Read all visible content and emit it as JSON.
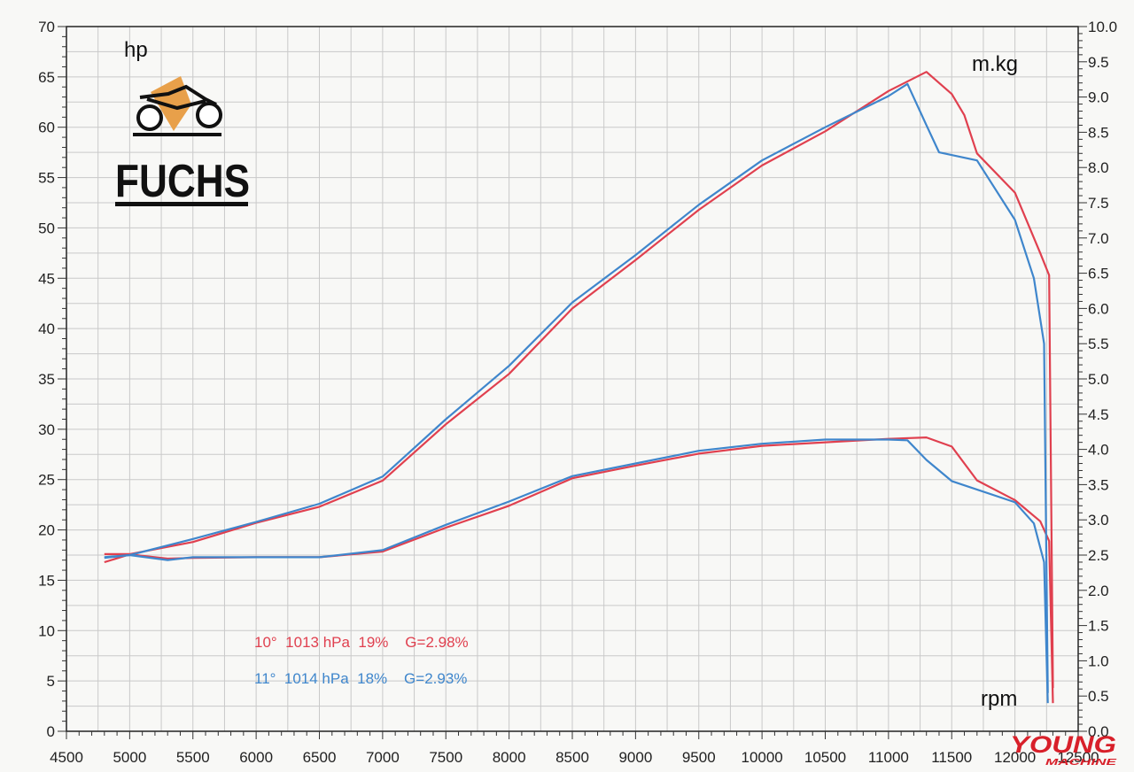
{
  "chart_data": {
    "type": "line",
    "left_axis": {
      "label": "hp",
      "range": [
        0,
        70
      ],
      "ticks": [
        "0",
        "5",
        "10",
        "15",
        "20",
        "25",
        "30",
        "35",
        "40",
        "45",
        "50",
        "55",
        "60",
        "65",
        "70"
      ]
    },
    "right_axis": {
      "label": "m.kg",
      "range": [
        0.0,
        10.0
      ],
      "ticks": [
        "0.0",
        "0.5",
        "1.0",
        "1.5",
        "2.0",
        "2.5",
        "3.0",
        "3.5",
        "4.0",
        "4.5",
        "5.0",
        "5.5",
        "6.0",
        "6.5",
        "7.0",
        "7.5",
        "8.0",
        "8.5",
        "9.0",
        "9.5",
        "10.0"
      ]
    },
    "x_axis": {
      "label": "rpm",
      "range": [
        4500,
        12500
      ],
      "ticks": [
        "4500",
        "5000",
        "5500",
        "6000",
        "6500",
        "7000",
        "7500",
        "8000",
        "8500",
        "9000",
        "9500",
        "10000",
        "10500",
        "11000",
        "11500",
        "12000",
        "12500"
      ]
    },
    "grid": true,
    "series": [
      {
        "name": "10°  1013 hPa  19%    G=2.98%",
        "color": "#e0404f",
        "power_hp": [
          [
            4800,
            17.6
          ],
          [
            5000,
            17.6
          ],
          [
            5500,
            18.8
          ],
          [
            6000,
            20.7
          ],
          [
            6500,
            22.3
          ],
          [
            7000,
            24.9
          ],
          [
            7500,
            30.5
          ],
          [
            8000,
            35.5
          ],
          [
            8500,
            42.0
          ],
          [
            9000,
            46.8
          ],
          [
            9500,
            51.8
          ],
          [
            10000,
            56.2
          ],
          [
            10500,
            59.6
          ],
          [
            11000,
            63.6
          ],
          [
            11300,
            65.5
          ],
          [
            11500,
            63.3
          ],
          [
            11600,
            61.2
          ],
          [
            11700,
            57.4
          ],
          [
            12000,
            53.5
          ],
          [
            12200,
            47.5
          ],
          [
            12270,
            45.3
          ],
          [
            12300,
            4.3
          ]
        ],
        "torque_mkg": [
          [
            4800,
            2.4
          ],
          [
            5000,
            2.51
          ],
          [
            5300,
            2.45
          ],
          [
            5500,
            2.46
          ],
          [
            6000,
            2.47
          ],
          [
            6500,
            2.47
          ],
          [
            7000,
            2.55
          ],
          [
            7500,
            2.89
          ],
          [
            8000,
            3.2
          ],
          [
            8500,
            3.59
          ],
          [
            9000,
            3.77
          ],
          [
            9500,
            3.94
          ],
          [
            10000,
            4.05
          ],
          [
            10500,
            4.1
          ],
          [
            11000,
            4.15
          ],
          [
            11300,
            4.17
          ],
          [
            11500,
            4.04
          ],
          [
            11700,
            3.56
          ],
          [
            12000,
            3.28
          ],
          [
            12200,
            2.98
          ],
          [
            12270,
            2.7
          ],
          [
            12300,
            0.4
          ]
        ]
      },
      {
        "name": "11°  1014 hPa  18%    G=2.93%",
        "color": "#3f86cc",
        "power_hp": [
          [
            4800,
            17.3
          ],
          [
            5000,
            17.5
          ],
          [
            5500,
            19.1
          ],
          [
            6000,
            20.8
          ],
          [
            6500,
            22.6
          ],
          [
            7000,
            25.3
          ],
          [
            7500,
            31.0
          ],
          [
            8000,
            36.3
          ],
          [
            8500,
            42.6
          ],
          [
            9000,
            47.3
          ],
          [
            9500,
            52.3
          ],
          [
            10000,
            56.7
          ],
          [
            10500,
            60.0
          ],
          [
            11000,
            63.1
          ],
          [
            11150,
            64.3
          ],
          [
            11300,
            60.2
          ],
          [
            11400,
            57.5
          ],
          [
            11700,
            56.7
          ],
          [
            12000,
            50.8
          ],
          [
            12150,
            45.0
          ],
          [
            12230,
            38.5
          ],
          [
            12260,
            3.8
          ]
        ],
        "torque_mkg": [
          [
            4800,
            2.46
          ],
          [
            5000,
            2.5
          ],
          [
            5300,
            2.43
          ],
          [
            5500,
            2.47
          ],
          [
            6000,
            2.47
          ],
          [
            6500,
            2.47
          ],
          [
            7000,
            2.57
          ],
          [
            7500,
            2.93
          ],
          [
            8000,
            3.26
          ],
          [
            8500,
            3.62
          ],
          [
            9000,
            3.8
          ],
          [
            9500,
            3.98
          ],
          [
            10000,
            4.08
          ],
          [
            10500,
            4.14
          ],
          [
            11000,
            4.14
          ],
          [
            11150,
            4.13
          ],
          [
            11300,
            3.85
          ],
          [
            11500,
            3.55
          ],
          [
            12000,
            3.25
          ],
          [
            12150,
            2.95
          ],
          [
            12230,
            2.4
          ],
          [
            12260,
            0.4
          ]
        ]
      }
    ]
  },
  "logo": {
    "text": "FUCHS",
    "accent": "#e8a04a"
  },
  "watermark": {
    "text": "YOUNG",
    "subtext": "MACHINE",
    "color": "#d8202a"
  }
}
